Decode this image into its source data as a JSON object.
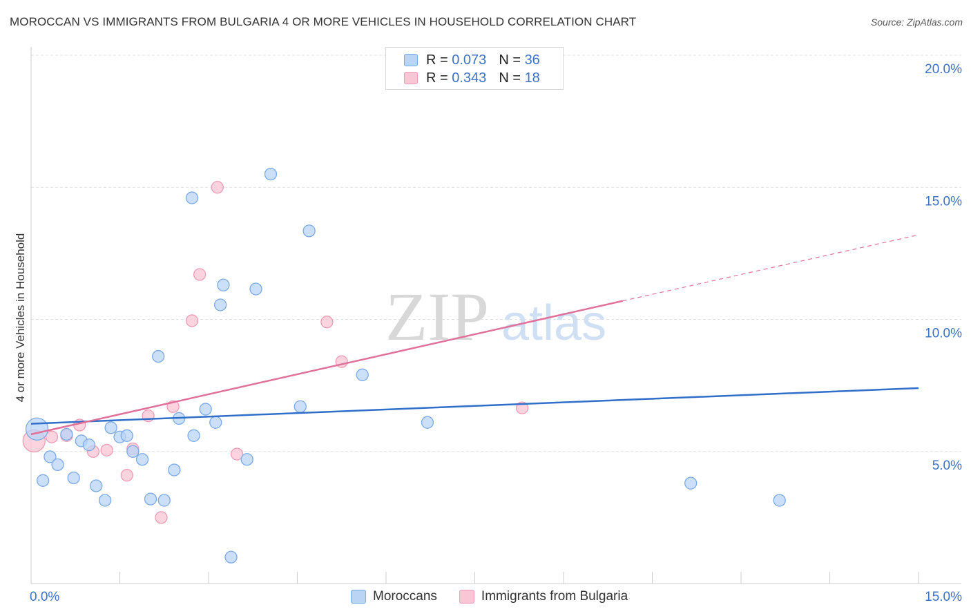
{
  "header": {
    "title": "MOROCCAN VS IMMIGRANTS FROM BULGARIA 4 OR MORE VEHICLES IN HOUSEHOLD CORRELATION CHART",
    "source": "Source: ZipAtlas.com"
  },
  "watermark": {
    "zip": "ZIP",
    "atlas": "atlas"
  },
  "legend_top": {
    "rows": [
      {
        "r_label": "R =",
        "r_value": "0.073",
        "n_label": "N =",
        "n_value": "36",
        "color": "#7aaae8"
      },
      {
        "r_label": "R =",
        "r_value": "0.343",
        "n_label": "N =",
        "n_value": "18",
        "color": "#f2a0b8"
      }
    ]
  },
  "legend_bottom": [
    {
      "label": "Moroccans",
      "color": "#7aaae8"
    },
    {
      "label": "Immigrants from Bulgaria",
      "color": "#f2a0b8"
    }
  ],
  "colors": {
    "moroccans_fill": "#bad4f5",
    "moroccans_stroke": "#7aaae8",
    "moroccans_line": "#2f6ec9",
    "bulgaria_fill": "#f9c6d6",
    "bulgaria_stroke": "#ee9bb5",
    "bulgaria_line": "#e0709a",
    "tick_label": "#3b72c8",
    "grid": "#e2e2e2",
    "axis": "#cccccc"
  },
  "chart_data": {
    "type": "scatter",
    "title": "MOROCCAN VS IMMIGRANTS FROM BULGARIA 4 OR MORE VEHICLES IN HOUSEHOLD CORRELATION CHART",
    "xlabel": "",
    "ylabel": "4 or more Vehicles in Household",
    "xlim": [
      0,
      15
    ],
    "ylim": [
      0,
      20
    ],
    "x_tick_labels": [
      {
        "value": 0,
        "label": "0.0%"
      },
      {
        "value": 15,
        "label": "15.0%"
      }
    ],
    "y_tick_labels": [
      {
        "value": 5,
        "label": "5.0%"
      },
      {
        "value": 10,
        "label": "10.0%"
      },
      {
        "value": 15,
        "label": "15.0%"
      },
      {
        "value": 20,
        "label": "20.0%"
      }
    ],
    "x_minor_ticks": [
      1.5,
      3.0,
      4.5,
      6.0,
      7.5,
      9.0,
      10.5,
      12.0,
      13.5,
      15.0
    ],
    "series": [
      {
        "name": "Moroccans",
        "r": 0.073,
        "n": 36,
        "trend": {
          "x": [
            0,
            15
          ],
          "y": [
            6.05,
            7.4
          ]
        },
        "points": [
          {
            "x": 0.1,
            "y": 5.85,
            "big": true
          },
          {
            "x": 0.2,
            "y": 3.9
          },
          {
            "x": 0.32,
            "y": 4.8
          },
          {
            "x": 0.45,
            "y": 4.5
          },
          {
            "x": 0.6,
            "y": 5.65
          },
          {
            "x": 0.72,
            "y": 4.0
          },
          {
            "x": 0.85,
            "y": 5.4
          },
          {
            "x": 0.98,
            "y": 5.25
          },
          {
            "x": 1.1,
            "y": 3.7
          },
          {
            "x": 1.25,
            "y": 3.15
          },
          {
            "x": 1.35,
            "y": 5.9
          },
          {
            "x": 1.5,
            "y": 5.55
          },
          {
            "x": 1.62,
            "y": 5.6
          },
          {
            "x": 1.72,
            "y": 5.0
          },
          {
            "x": 1.88,
            "y": 4.7
          },
          {
            "x": 2.02,
            "y": 3.2
          },
          {
            "x": 2.15,
            "y": 8.6
          },
          {
            "x": 2.25,
            "y": 3.15
          },
          {
            "x": 2.42,
            "y": 4.3
          },
          {
            "x": 2.5,
            "y": 6.25
          },
          {
            "x": 2.72,
            "y": 14.6
          },
          {
            "x": 2.75,
            "y": 5.6
          },
          {
            "x": 2.95,
            "y": 6.6
          },
          {
            "x": 3.12,
            "y": 6.1
          },
          {
            "x": 3.2,
            "y": 10.55
          },
          {
            "x": 3.25,
            "y": 11.3
          },
          {
            "x": 3.38,
            "y": 1.0
          },
          {
            "x": 3.65,
            "y": 4.7
          },
          {
            "x": 3.8,
            "y": 11.15
          },
          {
            "x": 4.05,
            "y": 15.5
          },
          {
            "x": 4.55,
            "y": 6.7
          },
          {
            "x": 4.7,
            "y": 13.35
          },
          {
            "x": 5.6,
            "y": 7.9
          },
          {
            "x": 6.7,
            "y": 6.1
          },
          {
            "x": 11.15,
            "y": 3.8
          },
          {
            "x": 12.65,
            "y": 3.15
          }
        ]
      },
      {
        "name": "Immigrants from Bulgaria",
        "r": 0.343,
        "n": 18,
        "trend": {
          "x": [
            0,
            10.0
          ],
          "y": [
            5.65,
            10.7
          ]
        },
        "trend_dashed": {
          "x": [
            10.0,
            15.0
          ],
          "y": [
            10.7,
            13.2
          ]
        },
        "points": [
          {
            "x": 0.05,
            "y": 5.4,
            "big": true
          },
          {
            "x": 0.35,
            "y": 5.55
          },
          {
            "x": 0.6,
            "y": 5.6
          },
          {
            "x": 0.82,
            "y": 6.0
          },
          {
            "x": 1.05,
            "y": 5.0
          },
          {
            "x": 1.28,
            "y": 5.05
          },
          {
            "x": 1.62,
            "y": 4.1
          },
          {
            "x": 1.72,
            "y": 5.1
          },
          {
            "x": 1.98,
            "y": 6.35
          },
          {
            "x": 2.2,
            "y": 2.5
          },
          {
            "x": 2.4,
            "y": 6.7
          },
          {
            "x": 2.72,
            "y": 9.95
          },
          {
            "x": 2.85,
            "y": 11.7
          },
          {
            "x": 3.15,
            "y": 15.0
          },
          {
            "x": 3.48,
            "y": 4.9
          },
          {
            "x": 5.0,
            "y": 9.9
          },
          {
            "x": 5.25,
            "y": 8.4
          },
          {
            "x": 8.3,
            "y": 6.65
          }
        ]
      }
    ]
  }
}
